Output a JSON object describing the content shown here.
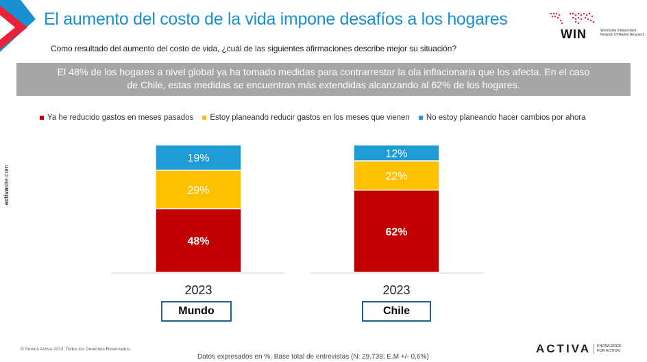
{
  "header": {
    "title": "El aumento del costo de la vida impone desafíos a los hogares",
    "question": "Como resultado del aumento del costo de vida,  ¿cuál de las siguientes afirmaciones describe  mejor su situación?"
  },
  "banner": {
    "line1": "El 48% de los hogares a nivel global ya ha tomado medidas para contrarrestar la ola inflacionaria que los afecta. En el caso",
    "line2": "de Chile, estas medidas se encuentran más extendidas alcanzando al 62% de los hogares."
  },
  "win_logo": {
    "name": "WIN",
    "subtitle": "Worldwide Independent Network Of Market Research"
  },
  "side_url": {
    "bold": "activa",
    "rest": "site.com"
  },
  "chart_data": {
    "type": "bar",
    "stacked": true,
    "categories": [
      "Mundo",
      "Chile"
    ],
    "year_labels": [
      "2023",
      "2023"
    ],
    "series": [
      {
        "name": "Ya he reducido gastos en meses pasados",
        "values": [
          48,
          62
        ],
        "labels": [
          "48%",
          "62%"
        ],
        "color": "#c00000"
      },
      {
        "name": "Estoy planeando reducir gastos en los meses que vienen",
        "values": [
          29,
          22
        ],
        "labels": [
          "29%",
          "22%"
        ],
        "color": "#ffc000"
      },
      {
        "name": "No estoy planeando hacer cambios por ahora",
        "values": [
          19,
          12
        ],
        "labels": [
          "19%",
          "12%"
        ],
        "color": "#1f9bd6"
      }
    ],
    "legend_position": "top",
    "grid": false
  },
  "footer": {
    "copyright": "© Somos Activa 2023. Todos los Derechos Reservados.",
    "note": "Datos expresados en %. Base total de entrevistas (N: 29.739; E.M +/- 0,6%)",
    "brand": "ACTIVA",
    "tagline1": "KNOWLEDGE",
    "tagline2": "FOR ACTION"
  }
}
